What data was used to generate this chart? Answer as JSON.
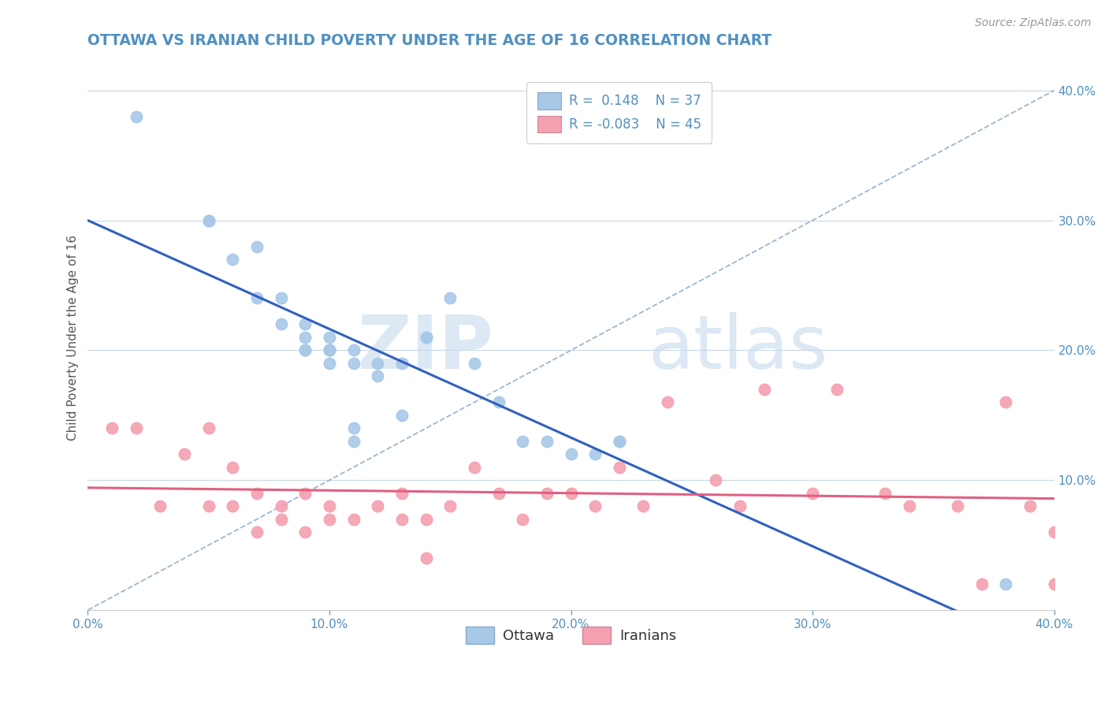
{
  "title": "OTTAWA VS IRANIAN CHILD POVERTY UNDER THE AGE OF 16 CORRELATION CHART",
  "source": "Source: ZipAtlas.com",
  "ylabel": "Child Poverty Under the Age of 16",
  "xlim": [
    0.0,
    0.4
  ],
  "ylim": [
    0.0,
    0.42
  ],
  "xticks": [
    0.0,
    0.1,
    0.2,
    0.3,
    0.4
  ],
  "yticks": [
    0.1,
    0.2,
    0.3,
    0.4
  ],
  "xticklabels": [
    "0.0%",
    "10.0%",
    "20.0%",
    "30.0%",
    "40.0%"
  ],
  "yticklabels": [
    "10.0%",
    "20.0%",
    "30.0%",
    "40.0%"
  ],
  "legend_r1": "R =  0.148",
  "legend_n1": "N = 37",
  "legend_r2": "R = -0.083",
  "legend_n2": "N = 45",
  "ottawa_color": "#a8c8e8",
  "iranian_color": "#f4a0b0",
  "ottawa_line_color": "#3060c0",
  "iranian_line_color": "#e06080",
  "grid_color": "#c8d8e8",
  "title_color": "#5090c0",
  "tick_color": "#5090c0",
  "dash_color": "#88aacc",
  "ottawa_x": [
    0.02,
    0.05,
    0.05,
    0.06,
    0.07,
    0.07,
    0.08,
    0.08,
    0.09,
    0.09,
    0.09,
    0.09,
    0.1,
    0.1,
    0.1,
    0.1,
    0.1,
    0.11,
    0.11,
    0.11,
    0.11,
    0.12,
    0.12,
    0.13,
    0.13,
    0.14,
    0.14,
    0.15,
    0.16,
    0.17,
    0.18,
    0.19,
    0.2,
    0.21,
    0.22,
    0.22,
    0.38
  ],
  "ottawa_y": [
    0.38,
    0.3,
    0.3,
    0.27,
    0.24,
    0.28,
    0.24,
    0.22,
    0.21,
    0.22,
    0.2,
    0.2,
    0.21,
    0.2,
    0.2,
    0.19,
    0.2,
    0.2,
    0.19,
    0.14,
    0.13,
    0.19,
    0.18,
    0.15,
    0.19,
    0.21,
    0.21,
    0.24,
    0.19,
    0.16,
    0.13,
    0.13,
    0.12,
    0.12,
    0.13,
    0.13,
    0.02
  ],
  "iranian_x": [
    0.01,
    0.02,
    0.03,
    0.04,
    0.05,
    0.05,
    0.06,
    0.06,
    0.07,
    0.07,
    0.08,
    0.08,
    0.09,
    0.09,
    0.1,
    0.1,
    0.11,
    0.12,
    0.13,
    0.13,
    0.14,
    0.14,
    0.15,
    0.16,
    0.17,
    0.18,
    0.19,
    0.2,
    0.21,
    0.22,
    0.23,
    0.24,
    0.26,
    0.27,
    0.28,
    0.3,
    0.31,
    0.33,
    0.34,
    0.36,
    0.37,
    0.38,
    0.39,
    0.4,
    0.4
  ],
  "iranian_y": [
    0.14,
    0.14,
    0.08,
    0.12,
    0.08,
    0.14,
    0.08,
    0.11,
    0.06,
    0.09,
    0.07,
    0.08,
    0.06,
    0.09,
    0.07,
    0.08,
    0.07,
    0.08,
    0.07,
    0.09,
    0.07,
    0.04,
    0.08,
    0.11,
    0.09,
    0.07,
    0.09,
    0.09,
    0.08,
    0.11,
    0.08,
    0.16,
    0.1,
    0.08,
    0.17,
    0.09,
    0.17,
    0.09,
    0.08,
    0.08,
    0.02,
    0.16,
    0.08,
    0.02,
    0.06
  ]
}
